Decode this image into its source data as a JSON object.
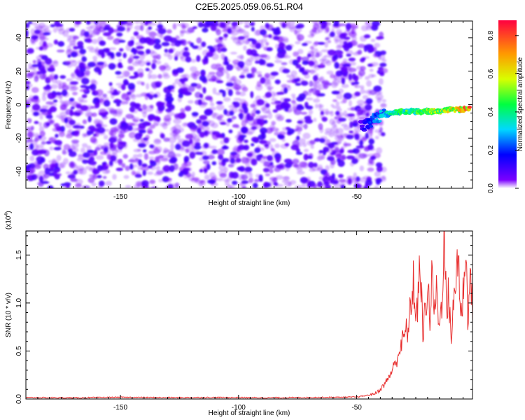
{
  "chart_data": [
    {
      "type": "heatmap",
      "title": "C2E5.2025.059.06.51.R04",
      "xlabel": "Height of straight line (km)",
      "ylabel": "Frequency (Hz)",
      "xlim": [
        -190,
        -1
      ],
      "ylim": [
        -50,
        50
      ],
      "xticks": [
        -150,
        -100,
        -50
      ],
      "yticks": [
        -40,
        -20,
        0,
        20,
        40
      ],
      "colorbar": {
        "label": "Normalized spectral amplitude",
        "range": [
          0,
          0.88
        ],
        "ticks": [
          "0.0",
          "0.2",
          "0.4",
          "0.6",
          "0.8"
        ],
        "colormap": [
          "#ffffff",
          "#7b00ff",
          "#0000ff",
          "#00d8ff",
          "#00ff40",
          "#d8ff00",
          "#ff9a00",
          "#ff0040"
        ]
      },
      "noise_region": {
        "x_range": [
          -190,
          -38
        ],
        "freq_range": [
          -50,
          50
        ],
        "typical_amplitude": 0.05,
        "peak_amplitude": 0.12
      },
      "signal_ridge": {
        "x": [
          -48,
          -45,
          -42,
          -40,
          -38,
          -35,
          -30,
          -25,
          -20,
          -15,
          -10,
          -5,
          -2
        ],
        "freq": [
          -13,
          -11,
          -8,
          -7,
          -6,
          -5,
          -4,
          -4,
          -4,
          -4,
          -3,
          -3,
          -2
        ],
        "amplitude": [
          0.12,
          0.2,
          0.3,
          0.35,
          0.4,
          0.45,
          0.5,
          0.55,
          0.6,
          0.65,
          0.7,
          0.8,
          0.88
        ]
      }
    },
    {
      "type": "line",
      "title": "",
      "xlabel": "Height of straight line (km)",
      "ylabel": "SNR (10 * v/v)",
      "y_multiplier": "(x10",
      "y_multiplier_exp": "4",
      "y_multiplier_close": ")",
      "xlim": [
        -190,
        -1
      ],
      "ylim": [
        0,
        17500
      ],
      "xticks": [
        -150,
        -100,
        -50
      ],
      "yticks": [
        "0.0",
        "0.5",
        "1.0",
        "1.5"
      ],
      "ytick_values": [
        0,
        5000,
        10000,
        15000
      ],
      "line_color": "#e83030",
      "series": [
        {
          "x": [
            -190,
            -170,
            -150,
            -130,
            -110,
            -90,
            -70,
            -50,
            -45,
            -42,
            -40,
            -38,
            -36,
            -34,
            -32,
            -30,
            -28,
            -26,
            -25,
            -24,
            -23,
            -22,
            -21,
            -20,
            -19,
            -18,
            -17,
            -16,
            -15,
            -14,
            -13,
            -12,
            -11,
            -10,
            -9,
            -8,
            -7,
            -6,
            -5,
            -4,
            -3,
            -2,
            -1
          ],
          "values": [
            150,
            120,
            180,
            140,
            160,
            130,
            150,
            200,
            400,
            600,
            1000,
            1600,
            2500,
            3500,
            5000,
            6500,
            7500,
            12500,
            8000,
            10500,
            14300,
            6000,
            9500,
            12000,
            8500,
            13000,
            9000,
            11500,
            7000,
            10500,
            17500,
            9000,
            11000,
            6500,
            9500,
            12500,
            16100,
            8000,
            11000,
            16000,
            9000,
            12300,
            10000
          ]
        }
      ]
    }
  ]
}
